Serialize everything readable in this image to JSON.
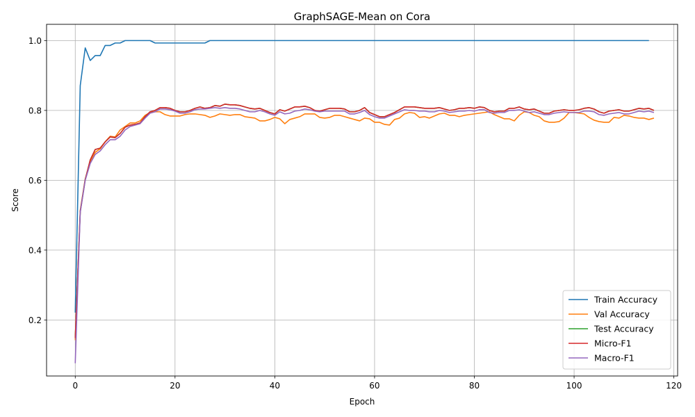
{
  "chart_data": {
    "type": "line",
    "title": "GraphSAGE-Mean on Cora",
    "xlabel": "Epoch",
    "ylabel": "Score",
    "xlim": [
      -5.75,
      120.75
    ],
    "ylim": [
      0.0395,
      1.0465
    ],
    "xticks": [
      0,
      20,
      40,
      60,
      80,
      100,
      120
    ],
    "yticks": [
      0.2,
      0.4,
      0.6,
      0.8,
      1.0
    ],
    "xtick_labels": [
      "0",
      "20",
      "40",
      "60",
      "80",
      "100",
      "120"
    ],
    "ytick_labels": [
      "0.2",
      "0.4",
      "0.6",
      "0.8",
      "1.0"
    ],
    "grid": true,
    "legend_position": "lower-right",
    "series": [
      {
        "name": "Train Accuracy",
        "color": "#1f77b4",
        "values": [
          0.221,
          0.871,
          0.979,
          0.943,
          0.957,
          0.957,
          0.986,
          0.986,
          0.993,
          0.993,
          1.0,
          1.0,
          1.0,
          1.0,
          1.0,
          1.0,
          0.993,
          0.993,
          0.993,
          0.993,
          0.993,
          0.993,
          0.993,
          0.993,
          0.993,
          0.993,
          0.993,
          1.0,
          1.0,
          1.0,
          1.0,
          1.0,
          1.0,
          1.0,
          1.0,
          1.0,
          1.0,
          1.0,
          1.0,
          1.0,
          1.0,
          1.0,
          1.0,
          1.0,
          1.0,
          1.0,
          1.0,
          1.0,
          1.0,
          1.0,
          1.0,
          1.0,
          1.0,
          1.0,
          1.0,
          1.0,
          1.0,
          1.0,
          1.0,
          1.0,
          1.0,
          1.0,
          1.0,
          1.0,
          1.0,
          1.0,
          1.0,
          1.0,
          1.0,
          1.0,
          1.0,
          1.0,
          1.0,
          1.0,
          1.0,
          1.0,
          1.0,
          1.0,
          1.0,
          1.0,
          1.0,
          1.0,
          1.0,
          1.0,
          1.0,
          1.0,
          1.0,
          1.0,
          1.0,
          1.0,
          1.0,
          1.0,
          1.0,
          1.0,
          1.0,
          1.0,
          1.0,
          1.0,
          1.0,
          1.0,
          1.0,
          1.0,
          1.0,
          1.0,
          1.0,
          1.0,
          1.0,
          1.0,
          1.0,
          1.0,
          1.0,
          1.0,
          1.0,
          1.0,
          1.0,
          1.0
        ]
      },
      {
        "name": "Val Accuracy",
        "color": "#ff7f0e",
        "values": [
          0.142,
          0.514,
          0.604,
          0.652,
          0.68,
          0.69,
          0.71,
          0.726,
          0.724,
          0.744,
          0.754,
          0.764,
          0.764,
          0.77,
          0.786,
          0.794,
          0.796,
          0.796,
          0.788,
          0.784,
          0.784,
          0.784,
          0.788,
          0.79,
          0.79,
          0.788,
          0.786,
          0.78,
          0.784,
          0.79,
          0.788,
          0.786,
          0.788,
          0.788,
          0.782,
          0.78,
          0.778,
          0.77,
          0.77,
          0.774,
          0.78,
          0.776,
          0.762,
          0.774,
          0.778,
          0.782,
          0.79,
          0.79,
          0.79,
          0.78,
          0.778,
          0.78,
          0.786,
          0.786,
          0.782,
          0.778,
          0.774,
          0.77,
          0.778,
          0.776,
          0.766,
          0.766,
          0.76,
          0.758,
          0.774,
          0.778,
          0.79,
          0.794,
          0.792,
          0.78,
          0.782,
          0.778,
          0.784,
          0.79,
          0.792,
          0.786,
          0.786,
          0.782,
          0.786,
          0.788,
          0.79,
          0.792,
          0.794,
          0.796,
          0.788,
          0.782,
          0.776,
          0.776,
          0.77,
          0.786,
          0.796,
          0.794,
          0.786,
          0.782,
          0.77,
          0.766,
          0.766,
          0.768,
          0.778,
          0.794,
          0.794,
          0.792,
          0.79,
          0.78,
          0.772,
          0.768,
          0.766,
          0.766,
          0.78,
          0.778,
          0.786,
          0.784,
          0.78,
          0.778,
          0.778,
          0.774,
          0.778
        ]
      },
      {
        "name": "Test Accuracy",
        "color": "#2ca02c",
        "values": [
          0.148,
          0.51,
          0.602,
          0.658,
          0.688,
          0.692,
          0.71,
          0.724,
          0.722,
          0.734,
          0.752,
          0.758,
          0.76,
          0.764,
          0.782,
          0.796,
          0.8,
          0.808,
          0.808,
          0.806,
          0.8,
          0.796,
          0.796,
          0.8,
          0.806,
          0.81,
          0.806,
          0.808,
          0.814,
          0.812,
          0.818,
          0.816,
          0.816,
          0.814,
          0.81,
          0.806,
          0.804,
          0.806,
          0.8,
          0.794,
          0.79,
          0.802,
          0.798,
          0.804,
          0.81,
          0.81,
          0.812,
          0.808,
          0.8,
          0.798,
          0.802,
          0.806,
          0.806,
          0.806,
          0.804,
          0.796,
          0.796,
          0.8,
          0.808,
          0.794,
          0.788,
          0.782,
          0.782,
          0.788,
          0.794,
          0.802,
          0.81,
          0.81,
          0.81,
          0.808,
          0.806,
          0.806,
          0.806,
          0.808,
          0.804,
          0.8,
          0.802,
          0.806,
          0.806,
          0.808,
          0.806,
          0.81,
          0.808,
          0.8,
          0.796,
          0.798,
          0.798,
          0.806,
          0.806,
          0.81,
          0.804,
          0.802,
          0.804,
          0.798,
          0.792,
          0.792,
          0.798,
          0.8,
          0.802,
          0.8,
          0.8,
          0.802,
          0.806,
          0.808,
          0.804,
          0.796,
          0.792,
          0.798,
          0.8,
          0.802,
          0.798,
          0.798,
          0.802,
          0.806,
          0.804,
          0.806,
          0.8
        ]
      },
      {
        "name": "Micro-F1",
        "color": "#d62728",
        "values": [
          0.148,
          0.51,
          0.602,
          0.658,
          0.688,
          0.692,
          0.71,
          0.724,
          0.722,
          0.734,
          0.752,
          0.758,
          0.76,
          0.764,
          0.782,
          0.796,
          0.8,
          0.808,
          0.808,
          0.806,
          0.8,
          0.796,
          0.796,
          0.8,
          0.806,
          0.81,
          0.806,
          0.808,
          0.814,
          0.812,
          0.818,
          0.816,
          0.816,
          0.814,
          0.81,
          0.806,
          0.804,
          0.806,
          0.8,
          0.794,
          0.79,
          0.802,
          0.798,
          0.804,
          0.81,
          0.81,
          0.812,
          0.808,
          0.8,
          0.798,
          0.802,
          0.806,
          0.806,
          0.806,
          0.804,
          0.796,
          0.796,
          0.8,
          0.808,
          0.794,
          0.788,
          0.782,
          0.782,
          0.788,
          0.794,
          0.802,
          0.81,
          0.81,
          0.81,
          0.808,
          0.806,
          0.806,
          0.806,
          0.808,
          0.804,
          0.8,
          0.802,
          0.806,
          0.806,
          0.808,
          0.806,
          0.81,
          0.808,
          0.8,
          0.796,
          0.798,
          0.798,
          0.806,
          0.806,
          0.81,
          0.804,
          0.802,
          0.804,
          0.798,
          0.792,
          0.792,
          0.798,
          0.8,
          0.802,
          0.8,
          0.8,
          0.802,
          0.806,
          0.808,
          0.804,
          0.796,
          0.792,
          0.798,
          0.8,
          0.802,
          0.798,
          0.798,
          0.802,
          0.806,
          0.804,
          0.806,
          0.8
        ]
      },
      {
        "name": "Macro-F1",
        "color": "#9467bd",
        "values": [
          0.076,
          0.508,
          0.6,
          0.648,
          0.674,
          0.684,
          0.702,
          0.716,
          0.716,
          0.726,
          0.744,
          0.754,
          0.758,
          0.762,
          0.778,
          0.792,
          0.796,
          0.804,
          0.804,
          0.802,
          0.798,
          0.792,
          0.792,
          0.796,
          0.802,
          0.804,
          0.804,
          0.806,
          0.808,
          0.806,
          0.808,
          0.806,
          0.806,
          0.804,
          0.8,
          0.796,
          0.796,
          0.8,
          0.796,
          0.79,
          0.786,
          0.796,
          0.79,
          0.792,
          0.798,
          0.8,
          0.804,
          0.802,
          0.798,
          0.796,
          0.798,
          0.798,
          0.798,
          0.798,
          0.798,
          0.79,
          0.79,
          0.794,
          0.8,
          0.788,
          0.782,
          0.778,
          0.778,
          0.784,
          0.79,
          0.796,
          0.802,
          0.8,
          0.8,
          0.798,
          0.798,
          0.796,
          0.796,
          0.8,
          0.798,
          0.794,
          0.796,
          0.798,
          0.798,
          0.8,
          0.798,
          0.802,
          0.802,
          0.794,
          0.792,
          0.794,
          0.794,
          0.8,
          0.8,
          0.802,
          0.798,
          0.794,
          0.796,
          0.792,
          0.788,
          0.788,
          0.792,
          0.794,
          0.796,
          0.794,
          0.794,
          0.794,
          0.798,
          0.798,
          0.796,
          0.788,
          0.786,
          0.79,
          0.792,
          0.794,
          0.79,
          0.79,
          0.794,
          0.798,
          0.796,
          0.798,
          0.794
        ]
      }
    ]
  }
}
